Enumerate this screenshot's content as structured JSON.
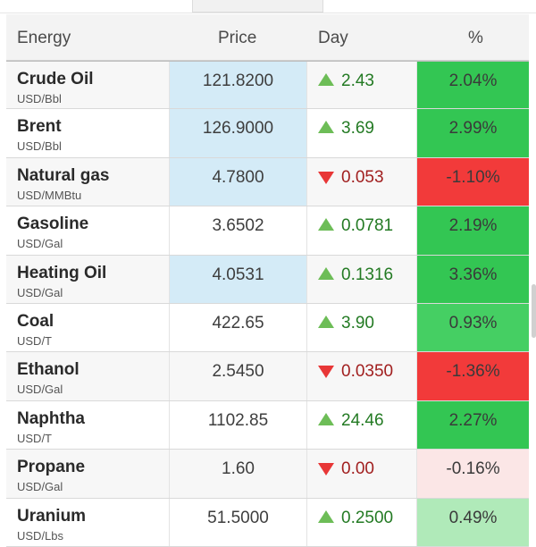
{
  "header": {
    "energy": "Energy",
    "price": "Price",
    "day": "Day",
    "pct": "%"
  },
  "rows": [
    {
      "name": "Crude Oil",
      "unit": "USD/Bbl",
      "price": "121.8200",
      "dir": "up",
      "day": "2.43",
      "pct": "2.04%",
      "pct_style": "strong-up",
      "price_hl": true
    },
    {
      "name": "Brent",
      "unit": "USD/Bbl",
      "price": "126.9000",
      "dir": "up",
      "day": "3.69",
      "pct": "2.99%",
      "pct_style": "strong-up",
      "price_hl": true
    },
    {
      "name": "Natural gas",
      "unit": "USD/MMBtu",
      "price": "4.7800",
      "dir": "down",
      "day": "0.053",
      "pct": "-1.10%",
      "pct_style": "strong-down",
      "price_hl": true
    },
    {
      "name": "Gasoline",
      "unit": "USD/Gal",
      "price": "3.6502",
      "dir": "up",
      "day": "0.0781",
      "pct": "2.19%",
      "pct_style": "strong-up",
      "price_hl": false
    },
    {
      "name": "Heating Oil",
      "unit": "USD/Gal",
      "price": "4.0531",
      "dir": "up",
      "day": "0.1316",
      "pct": "3.36%",
      "pct_style": "strong-up",
      "price_hl": true
    },
    {
      "name": "Coal",
      "unit": "USD/T",
      "price": "422.65",
      "dir": "up",
      "day": "3.90",
      "pct": "0.93%",
      "pct_style": "up",
      "price_hl": false
    },
    {
      "name": "Ethanol",
      "unit": "USD/Gal",
      "price": "2.5450",
      "dir": "down",
      "day": "0.0350",
      "pct": "-1.36%",
      "pct_style": "strong-down",
      "price_hl": false
    },
    {
      "name": "Naphtha",
      "unit": "USD/T",
      "price": "1102.85",
      "dir": "up",
      "day": "24.46",
      "pct": "2.27%",
      "pct_style": "strong-up",
      "price_hl": false
    },
    {
      "name": "Propane",
      "unit": "USD/Gal",
      "price": "1.60",
      "dir": "down",
      "day": "0.00",
      "pct": "-0.16%",
      "pct_style": "slight-down",
      "price_hl": false
    },
    {
      "name": "Uranium",
      "unit": "USD/Lbs",
      "price": "51.5000",
      "dir": "up",
      "day": "0.2500",
      "pct": "0.49%",
      "pct_style": "slight-up",
      "price_hl": false
    }
  ],
  "colors": {
    "up_arrow": "#6dbd57",
    "down_arrow": "#e83737",
    "strong_up_bg": "#33c653",
    "strong_down_bg": "#f23a3a",
    "price_highlight": "#d4ebf7"
  }
}
